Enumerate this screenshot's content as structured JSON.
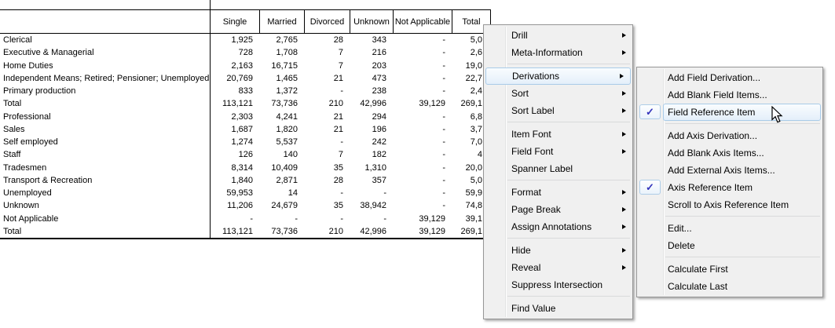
{
  "table": {
    "columns": [
      "Single",
      "Married",
      "Divorced",
      "Unknown",
      "Not Applicable",
      "Total"
    ],
    "rows": [
      {
        "label": "Clerical",
        "values": [
          "1,925",
          "2,765",
          "28",
          "343",
          "-",
          "5,0"
        ]
      },
      {
        "label": "Executive & Managerial",
        "values": [
          "728",
          "1,708",
          "7",
          "216",
          "-",
          "2,6"
        ]
      },
      {
        "label": "Home Duties",
        "values": [
          "2,163",
          "16,715",
          "7",
          "203",
          "-",
          "19,0"
        ]
      },
      {
        "label": "Independent Means; Retired; Pensioner; Unemployed",
        "values": [
          "20,769",
          "1,465",
          "21",
          "473",
          "-",
          "22,7"
        ]
      },
      {
        "label": "Primary production",
        "values": [
          "833",
          "1,372",
          "-",
          "238",
          "-",
          "2,4"
        ]
      },
      {
        "label": "Total",
        "values": [
          "113,121",
          "73,736",
          "210",
          "42,996",
          "39,129",
          "269,1"
        ]
      },
      {
        "label": "Professional",
        "values": [
          "2,303",
          "4,241",
          "21",
          "294",
          "-",
          "6,8"
        ]
      },
      {
        "label": "Sales",
        "values": [
          "1,687",
          "1,820",
          "21",
          "196",
          "-",
          "3,7"
        ]
      },
      {
        "label": "Self employed",
        "values": [
          "1,274",
          "5,537",
          "-",
          "242",
          "-",
          "7,0"
        ]
      },
      {
        "label": "Staff",
        "values": [
          "126",
          "140",
          "7",
          "182",
          "-",
          "4"
        ]
      },
      {
        "label": "Tradesmen",
        "values": [
          "8,314",
          "10,409",
          "35",
          "1,310",
          "-",
          "20,0"
        ]
      },
      {
        "label": "Transport & Recreation",
        "values": [
          "1,840",
          "2,871",
          "28",
          "357",
          "-",
          "5,0"
        ]
      },
      {
        "label": "Unemployed",
        "values": [
          "59,953",
          "14",
          "-",
          "-",
          "-",
          "59,9"
        ]
      },
      {
        "label": "Unknown",
        "values": [
          "11,206",
          "24,679",
          "35",
          "38,942",
          "-",
          "74,8"
        ]
      },
      {
        "label": "Not Applicable",
        "values": [
          "-",
          "-",
          "-",
          "-",
          "39,129",
          "39,1"
        ]
      },
      {
        "label": "Total",
        "values": [
          "113,121",
          "73,736",
          "210",
          "42,996",
          "39,129",
          "269,1"
        ]
      }
    ]
  },
  "context_menu": {
    "items": [
      {
        "label": "Drill",
        "has_submenu": true
      },
      {
        "label": "Meta-Information",
        "has_submenu": true
      },
      {
        "type": "separator"
      },
      {
        "label": "Derivations",
        "has_submenu": true,
        "highlighted": true
      },
      {
        "label": "Sort",
        "has_submenu": true
      },
      {
        "label": "Sort Label",
        "has_submenu": true
      },
      {
        "type": "separator"
      },
      {
        "label": "Item Font",
        "has_submenu": true
      },
      {
        "label": "Field Font",
        "has_submenu": true
      },
      {
        "label": "Spanner Label",
        "has_submenu": false
      },
      {
        "type": "separator"
      },
      {
        "label": "Format",
        "has_submenu": true
      },
      {
        "label": "Page Break",
        "has_submenu": true
      },
      {
        "label": "Assign Annotations",
        "has_submenu": true
      },
      {
        "type": "separator"
      },
      {
        "label": "Hide",
        "has_submenu": true
      },
      {
        "label": "Reveal",
        "has_submenu": true
      },
      {
        "label": "Suppress Intersection",
        "has_submenu": false
      },
      {
        "type": "separator"
      },
      {
        "label": "Find Value",
        "has_submenu": false
      }
    ]
  },
  "derivations_submenu": {
    "items": [
      {
        "label": "Add Field Derivation...",
        "checked": false
      },
      {
        "label": "Add Blank Field Items...",
        "checked": false
      },
      {
        "label": "Field Reference Item",
        "checked": true,
        "highlighted": true
      },
      {
        "type": "separator"
      },
      {
        "label": "Add Axis Derivation...",
        "checked": false
      },
      {
        "label": "Add Blank Axis Items...",
        "checked": false
      },
      {
        "label": "Add External Axis Items...",
        "checked": false
      },
      {
        "label": "Axis Reference Item",
        "checked": true
      },
      {
        "label": "Scroll to Axis Reference Item",
        "checked": false
      },
      {
        "type": "separator"
      },
      {
        "label": "Edit...",
        "checked": false
      },
      {
        "label": "Delete",
        "checked": false
      },
      {
        "type": "separator"
      },
      {
        "label": "Calculate First",
        "checked": false
      },
      {
        "label": "Calculate Last",
        "checked": false
      }
    ]
  },
  "icons": {
    "checkmark": "✓"
  },
  "colors": {
    "menu_background": "#F0F0F0",
    "menu_border": "#979797",
    "highlight_border": "#A9CBE8",
    "highlight_fill_top": "#F9FCFE",
    "highlight_fill_bottom": "#E4EFFA",
    "checkmark_color": "#3333BB",
    "separator": "#D9DADB",
    "table_border": "#000000"
  }
}
